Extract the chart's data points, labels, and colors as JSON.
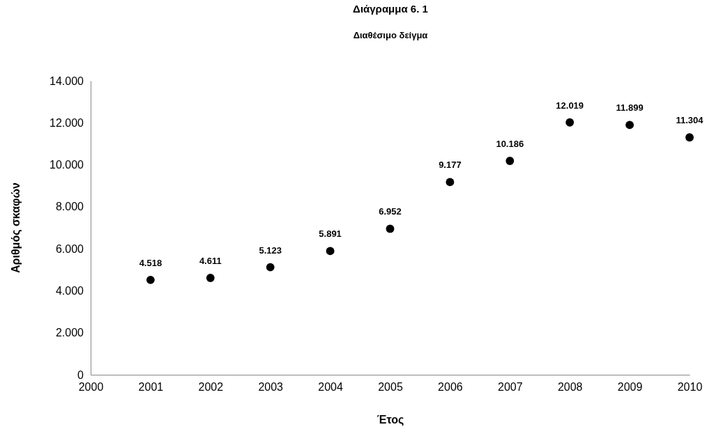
{
  "chart_data": {
    "type": "scatter",
    "title": "Διάγραμμα 6. 1",
    "subtitle": "Διαθέσιμο δείγμα",
    "xlabel": "Έτος",
    "ylabel": "Αριθμός σκαφών",
    "x": [
      2001,
      2002,
      2003,
      2004,
      2005,
      2006,
      2007,
      2008,
      2009,
      2010
    ],
    "values": [
      4518,
      4611,
      5123,
      5891,
      6952,
      9177,
      10186,
      12019,
      11899,
      11304
    ],
    "value_labels": [
      "4.518",
      "4.611",
      "5.123",
      "5.891",
      "6.952",
      "9.177",
      "10.186",
      "12.019",
      "11.899",
      "11.304"
    ],
    "color": "#000000",
    "marker": "circle",
    "xlim": [
      2000,
      2010
    ],
    "xticks": [
      2000,
      2001,
      2002,
      2003,
      2004,
      2005,
      2006,
      2007,
      2008,
      2009,
      2010
    ],
    "ylim": [
      0,
      14000
    ],
    "yticks": [
      {
        "value": 0,
        "label": "0"
      },
      {
        "value": 2000,
        "label": "2.000"
      },
      {
        "value": 4000,
        "label": "4.000"
      },
      {
        "value": 6000,
        "label": "6.000"
      },
      {
        "value": 8000,
        "label": "8.000"
      },
      {
        "value": 10000,
        "label": "10.000"
      },
      {
        "value": 12000,
        "label": "12.000"
      },
      {
        "value": 14000,
        "label": "14.000"
      }
    ],
    "grid": false
  }
}
